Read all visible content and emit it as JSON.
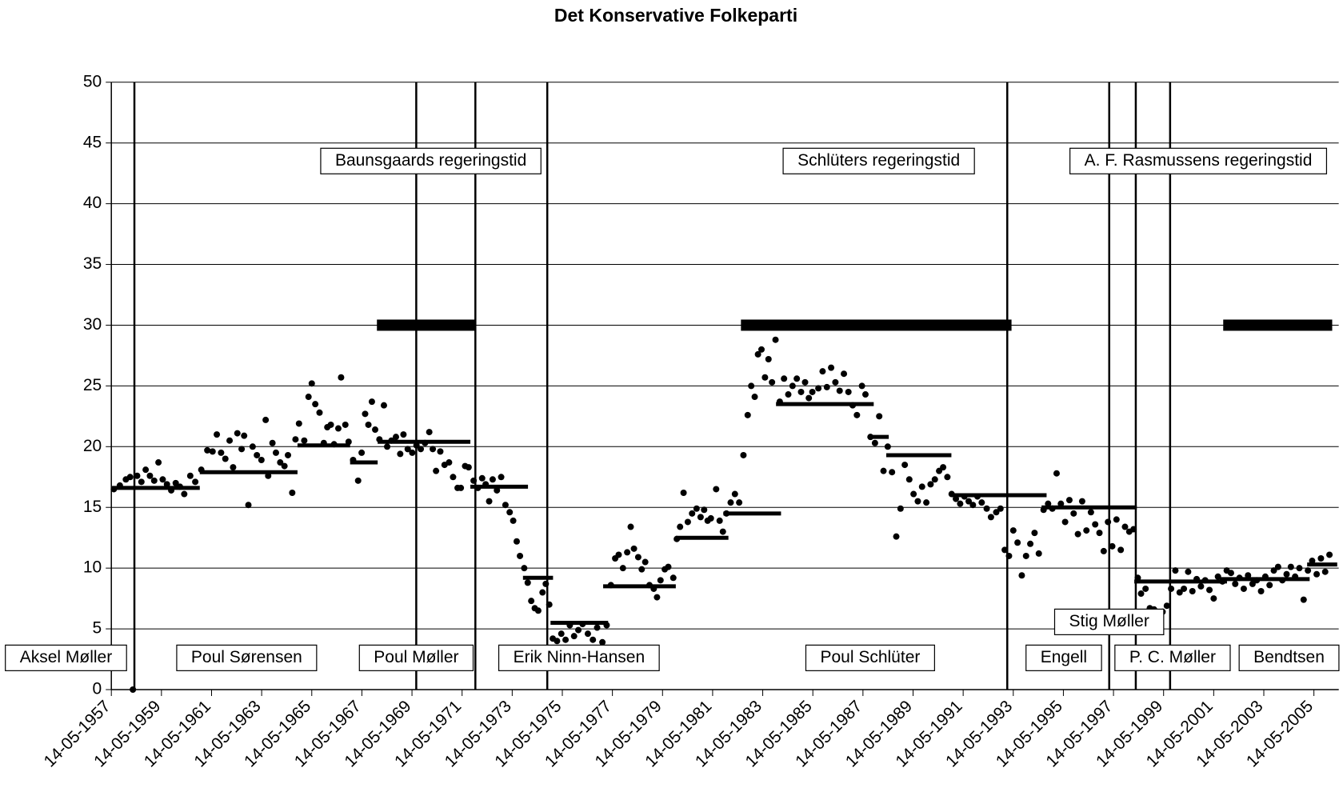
{
  "chart_data": {
    "type": "scatter",
    "title": "Det Konservative Folkeparti",
    "xlim": [
      1957.37,
      2006.36
    ],
    "ylim": [
      0,
      50
    ],
    "yticks": [
      0,
      5,
      10,
      15,
      20,
      25,
      30,
      35,
      40,
      45,
      50
    ],
    "grid": true,
    "color": "#000000",
    "xticks": [
      {
        "value": 1957.37,
        "label": "14-05-1957"
      },
      {
        "value": 1959.37,
        "label": "14-05-1959"
      },
      {
        "value": 1961.37,
        "label": "14-05-1961"
      },
      {
        "value": 1963.37,
        "label": "14-05-1963"
      },
      {
        "value": 1965.37,
        "label": "14-05-1965"
      },
      {
        "value": 1967.37,
        "label": "14-05-1967"
      },
      {
        "value": 1969.37,
        "label": "14-05-1969"
      },
      {
        "value": 1971.37,
        "label": "14-05-1971"
      },
      {
        "value": 1973.37,
        "label": "14-05-1973"
      },
      {
        "value": 1975.37,
        "label": "14-05-1975"
      },
      {
        "value": 1977.37,
        "label": "14-05-1977"
      },
      {
        "value": 1979.37,
        "label": "14-05-1979"
      },
      {
        "value": 1981.37,
        "label": "14-05-1981"
      },
      {
        "value": 1983.37,
        "label": "14-05-1983"
      },
      {
        "value": 1985.37,
        "label": "14-05-1985"
      },
      {
        "value": 1987.37,
        "label": "14-05-1987"
      },
      {
        "value": 1989.37,
        "label": "14-05-1989"
      },
      {
        "value": 1991.37,
        "label": "14-05-1991"
      },
      {
        "value": 1993.37,
        "label": "14-05-1993"
      },
      {
        "value": 1995.37,
        "label": "14-05-1995"
      },
      {
        "value": 1997.37,
        "label": "14-05-1997"
      },
      {
        "value": 1999.37,
        "label": "14-05-1999"
      },
      {
        "value": 2001.37,
        "label": "14-05-2001"
      },
      {
        "value": 2003.37,
        "label": "14-05-2003"
      },
      {
        "value": 2005.37,
        "label": "14-05-2005"
      }
    ],
    "x": [
      1957.47,
      1957.71,
      1957.95,
      1958.12,
      1958.23,
      1958.4,
      1958.57,
      1958.74,
      1958.91,
      1959.08,
      1959.25,
      1959.42,
      1959.59,
      1959.76,
      1959.94,
      1960.11,
      1960.28,
      1960.52,
      1960.72,
      1960.96,
      1961.2,
      1961.41,
      1961.58,
      1961.75,
      1961.92,
      1962.09,
      1962.23,
      1962.4,
      1962.57,
      1962.67,
      1962.84,
      1963.01,
      1963.18,
      1963.36,
      1963.53,
      1963.63,
      1963.8,
      1963.94,
      1964.11,
      1964.28,
      1964.42,
      1964.59,
      1964.72,
      1964.86,
      1965.07,
      1965.24,
      1965.37,
      1965.51,
      1965.68,
      1965.85,
      1965.99,
      1966.13,
      1966.26,
      1966.43,
      1966.54,
      1966.71,
      1966.84,
      1967.02,
      1967.22,
      1967.36,
      1967.5,
      1967.63,
      1967.77,
      1967.9,
      1968.07,
      1968.25,
      1968.38,
      1968.55,
      1968.73,
      1968.9,
      1969.03,
      1969.2,
      1969.38,
      1969.55,
      1969.72,
      1969.89,
      1970.06,
      1970.2,
      1970.33,
      1970.5,
      1970.67,
      1970.85,
      1971.01,
      1971.19,
      1971.32,
      1971.49,
      1971.63,
      1971.83,
      1972.0,
      1972.17,
      1972.31,
      1972.45,
      1972.59,
      1972.76,
      1972.93,
      1973.1,
      1973.27,
      1973.41,
      1973.55,
      1973.68,
      1973.85,
      1973.99,
      1974.13,
      1974.27,
      1974.41,
      1974.58,
      1974.71,
      1974.85,
      1974.99,
      1975.16,
      1975.33,
      1975.5,
      1975.67,
      1975.84,
      1976.01,
      1976.18,
      1976.39,
      1976.59,
      1976.76,
      1976.97,
      1977.14,
      1977.31,
      1977.48,
      1977.62,
      1977.79,
      1977.96,
      1978.1,
      1978.23,
      1978.4,
      1978.54,
      1978.68,
      1978.85,
      1979.02,
      1979.15,
      1979.29,
      1979.46,
      1979.6,
      1979.8,
      1979.94,
      1980.07,
      1980.21,
      1980.38,
      1980.55,
      1980.73,
      1980.89,
      1981.03,
      1981.17,
      1981.3,
      1981.51,
      1981.65,
      1981.78,
      1981.92,
      1982.09,
      1982.26,
      1982.43,
      1982.6,
      1982.77,
      1982.91,
      1983.05,
      1983.18,
      1983.32,
      1983.46,
      1983.6,
      1983.74,
      1983.88,
      1984.05,
      1984.22,
      1984.39,
      1984.56,
      1984.73,
      1984.9,
      1985.06,
      1985.21,
      1985.35,
      1985.59,
      1985.76,
      1985.93,
      1986.1,
      1986.27,
      1986.44,
      1986.61,
      1986.79,
      1986.96,
      1987.13,
      1987.33,
      1987.47,
      1987.67,
      1987.85,
      1988.02,
      1988.19,
      1988.36,
      1988.53,
      1988.7,
      1988.87,
      1989.04,
      1989.22,
      1989.39,
      1989.56,
      1989.73,
      1989.9,
      1990.07,
      1990.24,
      1990.41,
      1990.57,
      1990.74,
      1990.91,
      1991.08,
      1991.25,
      1991.42,
      1991.59,
      1991.76,
      1991.94,
      1992.11,
      1992.31,
      1992.48,
      1992.69,
      1992.86,
      1993.03,
      1993.2,
      1993.37,
      1993.54,
      1993.71,
      1993.88,
      1994.05,
      1994.22,
      1994.39,
      1994.58,
      1994.76,
      1994.93,
      1995.1,
      1995.27,
      1995.44,
      1995.61,
      1995.78,
      1995.95,
      1996.12,
      1996.29,
      1996.47,
      1996.64,
      1996.81,
      1996.98,
      1997.15,
      1997.32,
      1997.49,
      1997.66,
      1997.83,
      1998.0,
      1998.17,
      1998.34,
      1998.47,
      1998.65,
      1998.82,
      1998.99,
      1999.16,
      1999.33,
      1999.5,
      1999.67,
      1999.84,
      2000.01,
      2000.18,
      2000.35,
      2000.52,
      2000.69,
      2000.86,
      2001.03,
      2001.2,
      2001.37,
      2001.54,
      2001.72,
      2001.89,
      2002.06,
      2002.23,
      2002.4,
      2002.57,
      2002.74,
      2002.92,
      2003.09,
      2003.26,
      2003.43,
      2003.6,
      2003.77,
      2003.94,
      2004.11,
      2004.28,
      2004.45,
      2004.62,
      2004.79,
      2004.96,
      2005.13,
      2005.3,
      2005.48,
      2005.65,
      2005.82,
      2005.99
    ],
    "y": [
      16.5,
      16.8,
      17.3,
      17.5,
      0,
      17.6,
      17.1,
      18.1,
      17.6,
      17.2,
      18.7,
      17.3,
      16.9,
      16.4,
      17.0,
      16.7,
      16.1,
      17.6,
      17.1,
      18.1,
      19.7,
      19.6,
      21.0,
      19.5,
      19.0,
      20.5,
      18.3,
      21.1,
      19.8,
      20.9,
      15.2,
      20.0,
      19.3,
      18.9,
      22.2,
      17.6,
      20.3,
      19.5,
      18.7,
      18.4,
      19.3,
      16.2,
      20.6,
      21.9,
      20.5,
      24.1,
      25.2,
      23.5,
      22.8,
      20.3,
      21.6,
      21.8,
      20.2,
      21.5,
      25.7,
      21.8,
      20.4,
      18.9,
      17.2,
      19.5,
      22.7,
      21.8,
      23.7,
      21.4,
      20.6,
      23.4,
      20.0,
      20.5,
      20.8,
      19.4,
      21.0,
      19.8,
      19.5,
      20.1,
      19.8,
      20.3,
      21.2,
      19.8,
      18.0,
      19.6,
      18.5,
      18.7,
      17.5,
      16.6,
      16.6,
      18.4,
      18.3,
      17.2,
      16.6,
      17.4,
      16.9,
      15.5,
      17.3,
      16.4,
      17.5,
      15.2,
      14.6,
      13.9,
      12.2,
      11.0,
      10.0,
      8.8,
      7.3,
      6.7,
      6.5,
      8.0,
      8.7,
      7.0,
      4.2,
      4.0,
      4.6,
      4.1,
      5.3,
      4.4,
      4.9,
      5.4,
      4.6,
      4.1,
      5.1,
      3.9,
      5.3,
      8.6,
      10.8,
      11.1,
      10.0,
      11.3,
      13.4,
      11.6,
      10.9,
      9.9,
      10.5,
      8.6,
      8.3,
      7.6,
      9.0,
      9.9,
      10.1,
      9.2,
      12.4,
      13.4,
      16.2,
      13.8,
      14.5,
      14.9,
      14.2,
      14.8,
      13.9,
      14.1,
      16.5,
      13.9,
      13.0,
      14.5,
      15.4,
      16.1,
      15.4,
      19.3,
      22.6,
      25.0,
      24.1,
      27.6,
      28.0,
      25.7,
      27.2,
      25.3,
      28.8,
      23.7,
      25.6,
      24.3,
      25.0,
      25.6,
      24.5,
      25.3,
      24.0,
      24.5,
      24.8,
      26.2,
      24.9,
      26.5,
      25.3,
      24.6,
      26.0,
      24.5,
      23.4,
      22.6,
      25.0,
      24.3,
      20.8,
      20.3,
      22.5,
      18.0,
      20.0,
      17.9,
      12.6,
      14.9,
      18.5,
      17.3,
      16.1,
      15.5,
      16.7,
      15.4,
      16.9,
      17.3,
      18.0,
      18.3,
      17.5,
      16.1,
      15.7,
      15.3,
      15.9,
      15.5,
      15.2,
      15.9,
      15.4,
      14.9,
      14.2,
      14.6,
      14.9,
      11.5,
      11.0,
      13.1,
      12.1,
      9.4,
      11.0,
      12.0,
      12.9,
      11.2,
      14.8,
      15.3,
      14.9,
      17.8,
      15.3,
      13.8,
      15.6,
      14.5,
      12.8,
      15.5,
      13.1,
      14.6,
      13.6,
      12.9,
      11.4,
      13.8,
      11.8,
      14.0,
      11.5,
      13.4,
      13.0,
      13.2,
      9.2,
      7.9,
      8.3,
      6.7,
      6.6,
      5.9,
      6.4,
      6.9,
      8.3,
      9.8,
      8.0,
      8.3,
      9.7,
      8.1,
      9.1,
      8.5,
      9.0,
      8.2,
      7.5,
      9.3,
      8.9,
      9.8,
      9.6,
      8.7,
      9.2,
      8.3,
      9.4,
      8.7,
      9.0,
      8.1,
      9.3,
      8.6,
      9.8,
      10.1,
      9.0,
      9.5,
      10.1,
      9.3,
      10.0,
      7.4,
      9.8,
      10.6,
      9.5,
      10.8,
      9.7,
      11.1
    ],
    "results": [
      {
        "start": 1957.4,
        "end": 1960.9,
        "value": 16.6
      },
      {
        "start": 1960.9,
        "end": 1964.8,
        "value": 17.9
      },
      {
        "start": 1964.8,
        "end": 1966.9,
        "value": 20.1
      },
      {
        "start": 1966.9,
        "end": 1968.0,
        "value": 18.7
      },
      {
        "start": 1968.0,
        "end": 1971.7,
        "value": 20.4
      },
      {
        "start": 1971.7,
        "end": 1974.0,
        "value": 16.7
      },
      {
        "start": 1973.8,
        "end": 1975.0,
        "value": 9.2
      },
      {
        "start": 1974.9,
        "end": 1977.2,
        "value": 5.5
      },
      {
        "start": 1977.0,
        "end": 1979.9,
        "value": 8.5
      },
      {
        "start": 1979.9,
        "end": 1982.0,
        "value": 12.5
      },
      {
        "start": 1981.8,
        "end": 1984.1,
        "value": 14.5
      },
      {
        "start": 1983.9,
        "end": 1987.8,
        "value": 23.5
      },
      {
        "start": 1987.6,
        "end": 1988.4,
        "value": 20.8
      },
      {
        "start": 1988.3,
        "end": 1990.9,
        "value": 19.3
      },
      {
        "start": 1990.9,
        "end": 1994.7,
        "value": 16.0
      },
      {
        "start": 1994.5,
        "end": 1998.3,
        "value": 15.0
      },
      {
        "start": 1998.2,
        "end": 2001.9,
        "value": 8.9
      },
      {
        "start": 2001.6,
        "end": 2005.2,
        "value": 9.1
      },
      {
        "start": 2005.1,
        "end": 2006.3,
        "value": 10.3
      }
    ],
    "governments": [
      {
        "start": 1967.97,
        "end": 1971.9,
        "value": 30
      },
      {
        "start": 1982.5,
        "end": 1993.3,
        "value": 30
      },
      {
        "start": 2001.75,
        "end": 2006.1,
        "value": 30
      }
    ],
    "leader_changes": [
      1958.29,
      1969.54,
      1971.9,
      1974.77,
      1993.13,
      1997.2,
      1998.26,
      1999.63
    ],
    "government_labels": [
      "Baunsgaards regeringstid",
      "Schlüters regeringstid",
      "A. F. Rasmussens regeringstid"
    ],
    "leader_labels": [
      "Aksel Møller",
      "Poul Sørensen",
      "Poul Møller",
      "Erik Ninn-Hansen",
      "Poul Schlüter",
      "Engell",
      "Stig Møller",
      "P. C. Møller",
      "Bendtsen"
    ]
  }
}
